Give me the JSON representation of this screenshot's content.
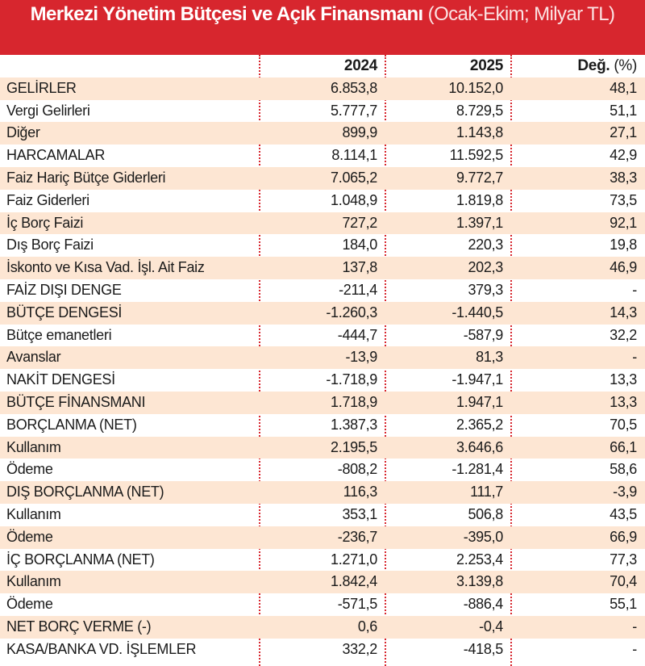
{
  "header": {
    "title": "Merkezi Yönetim Bütçesi ve Açık Finansmanı",
    "subtitle": "(Ocak-Ekim; Milyar TL)"
  },
  "table": {
    "columns": [
      "2024",
      "2025",
      "Değ."
    ],
    "change_unit": "(%)",
    "rows": [
      [
        "GELİRLER",
        "6.853,8",
        "10.152,0",
        "48,1"
      ],
      [
        "Vergi Gelirleri",
        "5.777,7",
        "8.729,5",
        "51,1"
      ],
      [
        "Diğer",
        "899,9",
        "1.143,8",
        "27,1"
      ],
      [
        "HARCAMALAR",
        "8.114,1",
        "11.592,5",
        "42,9"
      ],
      [
        "Faiz Hariç Bütçe Giderleri",
        "7.065,2",
        "9.772,7",
        "38,3"
      ],
      [
        "Faiz Giderleri",
        "1.048,9",
        "1.819,8",
        "73,5"
      ],
      [
        "İç Borç Faizi",
        "727,2",
        "1.397,1",
        "92,1"
      ],
      [
        "Dış Borç Faizi",
        "184,0",
        "220,3",
        "19,8"
      ],
      [
        "İskonto ve Kısa Vad. İşl. Ait Faiz",
        "137,8",
        "202,3",
        "46,9"
      ],
      [
        "FAİZ DIŞI DENGE",
        "-211,4",
        "379,3",
        "-"
      ],
      [
        "BÜTÇE DENGESİ",
        "-1.260,3",
        "-1.440,5",
        "14,3"
      ],
      [
        "Bütçe emanetleri",
        "-444,7",
        "-587,9",
        "32,2"
      ],
      [
        "Avanslar",
        "-13,9",
        "81,3",
        "-"
      ],
      [
        "NAKİT DENGESİ",
        "-1.718,9",
        "-1.947,1",
        "13,3"
      ],
      [
        "BÜTÇE FİNANSMANI",
        "1.718,9",
        "1.947,1",
        "13,3"
      ],
      [
        "BORÇLANMA (NET)",
        "1.387,3",
        "2.365,2",
        "70,5"
      ],
      [
        "Kullanım",
        "2.195,5",
        "3.646,6",
        "66,1"
      ],
      [
        "Ödeme",
        "-808,2",
        "-1.281,4",
        "58,6"
      ],
      [
        "DIŞ BORÇLANMA (NET)",
        "116,3",
        "111,7",
        "-3,9"
      ],
      [
        "Kullanım",
        "353,1",
        "506,8",
        "43,5"
      ],
      [
        "Ödeme",
        "-236,7",
        "-395,0",
        "66,9"
      ],
      [
        "İÇ BORÇLANMA (NET)",
        "1.271,0",
        "2.253,4",
        "77,3"
      ],
      [
        "Kullanım",
        "1.842,4",
        "3.139,8",
        "70,4"
      ],
      [
        "Ödeme",
        "-571,5",
        "-886,4",
        "55,1"
      ],
      [
        "NET BORÇ VERME (-)",
        "0,6",
        "-0,4",
        "-"
      ],
      [
        "KASA/BANKA VD. İŞLEMLER",
        "332,2",
        "-418,5",
        "-"
      ]
    ]
  }
}
